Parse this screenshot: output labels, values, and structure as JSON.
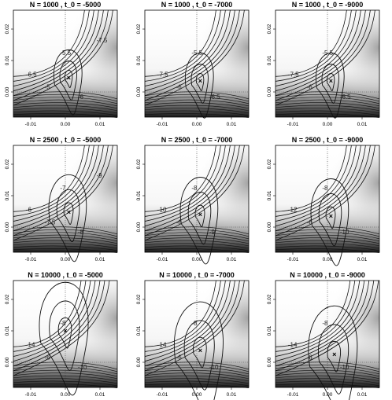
{
  "chart_data": {
    "type": "contour",
    "layout": {
      "rows": 3,
      "cols": 3
    },
    "xlim": [
      -0.015,
      0.015
    ],
    "ylim": [
      -0.008,
      0.026
    ],
    "x_ticks": [
      "-0.01",
      "0.00",
      "0.01"
    ],
    "y_ticks": [
      "0.00",
      "0.01",
      "0.02"
    ],
    "panels": [
      {
        "title": "N = 1000 , t_0 = -5000",
        "labels": [
          "-5.5",
          "-5",
          "-6",
          "-6.5",
          "-7.5"
        ],
        "max": [
          0.001,
          0.0045
        ]
      },
      {
        "title": "N = 1000 , t_0 = -7000",
        "labels": [
          "-5.5",
          "-6",
          "-6.5",
          "-7.5"
        ],
        "max": [
          0.001,
          0.0035
        ]
      },
      {
        "title": "N = 1000 , t_0 = -9000",
        "labels": [
          "-5.5",
          "-6",
          "-6.5",
          "-7.5"
        ],
        "max": [
          0.001,
          0.0035
        ]
      },
      {
        "title": "N = 2500 , t_0 = -5000",
        "labels": [
          "-7",
          "-7.5",
          "-8",
          "-6",
          "-9"
        ],
        "max": [
          0.001,
          0.0048
        ]
      },
      {
        "title": "N = 2500 , t_0 = -7000",
        "labels": [
          "-8",
          "-6",
          "-9",
          "-10"
        ],
        "max": [
          0.001,
          0.004
        ]
      },
      {
        "title": "N = 2500 , t_0 = -9000",
        "labels": [
          "-8",
          "-6",
          "-10",
          "-12"
        ],
        "max": [
          0.001,
          0.0035
        ]
      },
      {
        "title": "N = 10000 , t_0 = -5000",
        "labels": [
          "-8",
          "-6",
          "-10",
          "-14"
        ],
        "max": [
          0.0,
          0.01
        ]
      },
      {
        "title": "N = 10000 , t_0 = -7000",
        "labels": [
          "-8",
          "-6",
          "-10",
          "-14"
        ],
        "max": [
          0.001,
          0.0038
        ]
      },
      {
        "title": "N = 10000 , t_0 = -9000",
        "labels": [
          "-8",
          "-6",
          "-10",
          "-14"
        ],
        "max": [
          0.002,
          0.0025
        ]
      }
    ]
  }
}
